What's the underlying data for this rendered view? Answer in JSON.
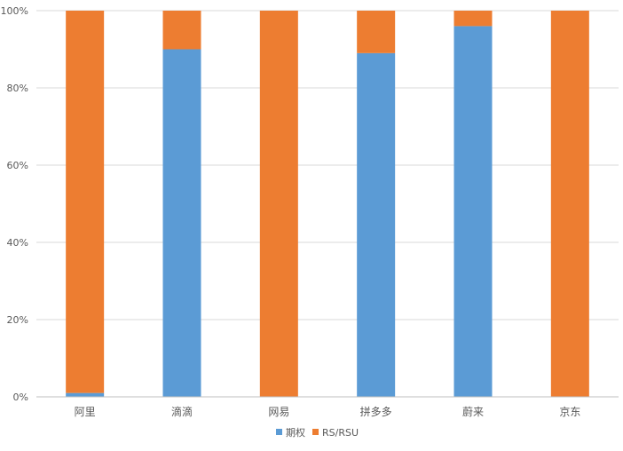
{
  "chart_data": {
    "type": "bar",
    "stacked": true,
    "percent": true,
    "categories": [
      "阿里",
      "滴滴",
      "网易",
      "拼多多",
      "蔚来",
      "京东"
    ],
    "series": [
      {
        "name": "期权",
        "color": "#5B9BD5",
        "values": [
          0.01,
          0.9,
          0.0,
          0.89,
          0.96,
          0.0
        ]
      },
      {
        "name": "RS/RSU",
        "color": "#ED7D31",
        "values": [
          0.99,
          0.1,
          1.0,
          0.11,
          0.04,
          1.0
        ]
      }
    ],
    "yticks": [
      "0%",
      "20%",
      "40%",
      "60%",
      "80%",
      "100%"
    ],
    "ylim": [
      0,
      1
    ],
    "grid": true,
    "legend": "bottom-center",
    "title": "",
    "xlabel": "",
    "ylabel": ""
  }
}
